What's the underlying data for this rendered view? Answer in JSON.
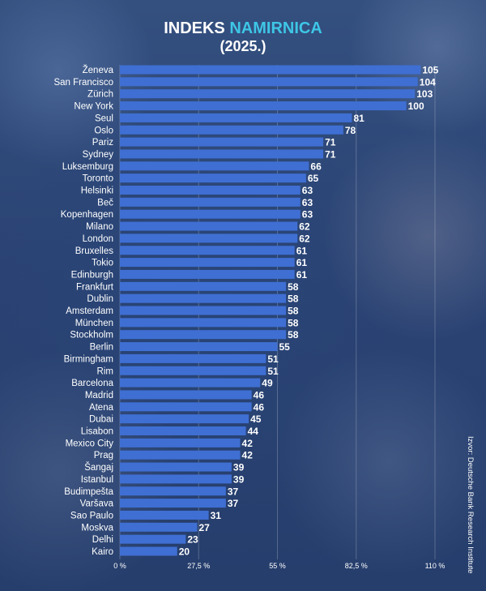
{
  "title_part1": "INDEKS",
  "title_part2": "NAMIRNICA",
  "subtitle": "(2025.)",
  "source": "Izvor: Deutsche Bank Research Institute",
  "colors": {
    "bar": "#3f6fd3",
    "accent": "#3ec6e6",
    "text": "#ffffff"
  },
  "chart_data": {
    "type": "bar",
    "orientation": "horizontal",
    "title": "INDEKS NAMIRNICA (2025.)",
    "categories": [
      "Ženeva",
      "San Francisco",
      "Zürich",
      "New York",
      "Seul",
      "Oslo",
      "Pariz",
      "Sydney",
      "Luksemburg",
      "Toronto",
      "Helsinki",
      "Beč",
      "Kopenhagen",
      "Milano",
      "London",
      "Bruxelles",
      "Tokio",
      "Edinburgh",
      "Frankfurt",
      "Dublin",
      "Amsterdam",
      "München",
      "Stockholm",
      "Berlin",
      "Birmingham",
      "Rim",
      "Barcelona",
      "Madrid",
      "Atena",
      "Dubai",
      "Lisabon",
      "Mexico City",
      "Prag",
      "Šangaj",
      "Istanbul",
      "Budimpešta",
      "Varšava",
      "Sao Paulo",
      "Moskva",
      "Delhi",
      "Kairo"
    ],
    "values": [
      105,
      104,
      103,
      100,
      81,
      78,
      71,
      71,
      66,
      65,
      63,
      63,
      63,
      62,
      62,
      61,
      61,
      61,
      58,
      58,
      58,
      58,
      58,
      55,
      51,
      51,
      49,
      46,
      46,
      45,
      44,
      42,
      42,
      39,
      39,
      37,
      37,
      31,
      27,
      23,
      20
    ],
    "xlim": [
      0,
      110
    ],
    "xticks": [
      "0 %",
      "27,5 %",
      "55 %",
      "82,5 %",
      "110 %"
    ],
    "grid": true
  }
}
